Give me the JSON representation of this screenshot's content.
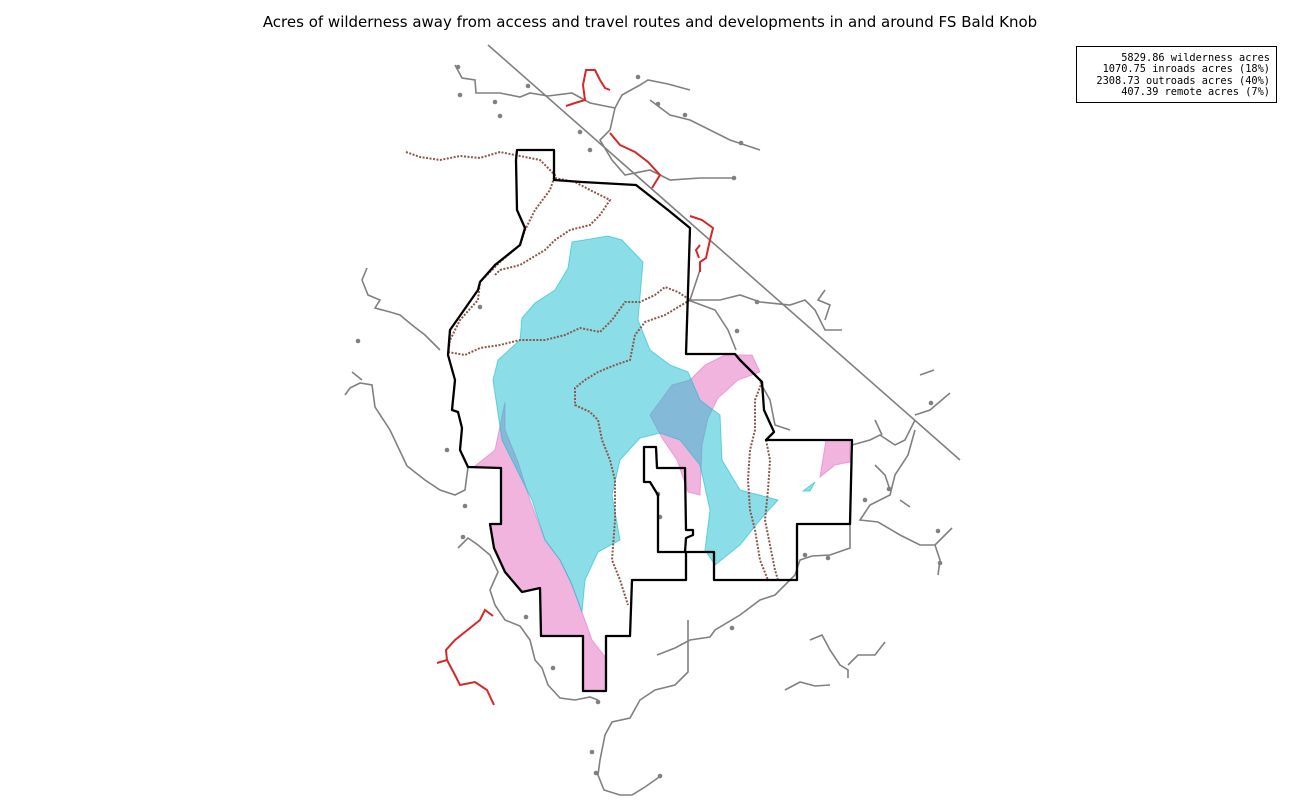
{
  "title": "Acres of wilderness away from access and travel routes and developments in and around FS Bald Knob",
  "legend": {
    "lines": [
      "5829.86 wilderness acres",
      "1070.75 inroads acres (18%)",
      "2308.73 outroads acres (40%)",
      "407.39 remote acres (7%)"
    ]
  },
  "colors": {
    "boundary": "#000000",
    "roads": "#808080",
    "highlighted_roads": "#d62728",
    "trails": "#8c564b",
    "remote_area": "#17becf",
    "inroads_area": "#e377c2"
  }
}
